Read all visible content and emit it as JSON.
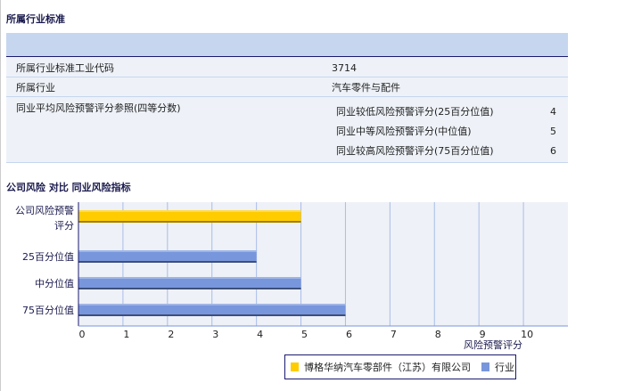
{
  "section1": {
    "title": "所属行业标准",
    "rows": [
      {
        "label": "所属行业标准工业代码",
        "value": "3714"
      },
      {
        "label": "所属行业",
        "value": "汽车零件与配件"
      }
    ],
    "ref": {
      "label": "同业平均风险预警评分参照(四等分数)",
      "items": [
        {
          "label": "同业较低风险预警评分(25百分位值)",
          "value": "4"
        },
        {
          "label": "同业中等风险预警评分(中位值)",
          "value": "5"
        },
        {
          "label": "同业较高风险预警评分(75百分位值)",
          "value": "6"
        }
      ]
    }
  },
  "chart_data": {
    "type": "bar",
    "orientation": "horizontal",
    "title": "公司风险 对比 同业风险指标",
    "xlabel": "风险预警评分",
    "xlim": [
      0,
      11
    ],
    "xticks": [
      0,
      1,
      2,
      3,
      4,
      5,
      6,
      7,
      8,
      9,
      10
    ],
    "grid": true,
    "legend_placement": "bottom-right",
    "categories": [
      "公司风险预警评分",
      "25百分位值",
      "中分位值",
      "75百分位值"
    ],
    "values": [
      5,
      4,
      5,
      6
    ],
    "bar_series": [
      "博格华纳汽车零部件（江苏）有限公司",
      "行业",
      "行业",
      "行业"
    ],
    "series": [
      {
        "name": "博格华纳汽车零部件（江苏）有限公司",
        "color": "#ffcc00"
      },
      {
        "name": "行业",
        "color": "#7896dc"
      }
    ]
  }
}
